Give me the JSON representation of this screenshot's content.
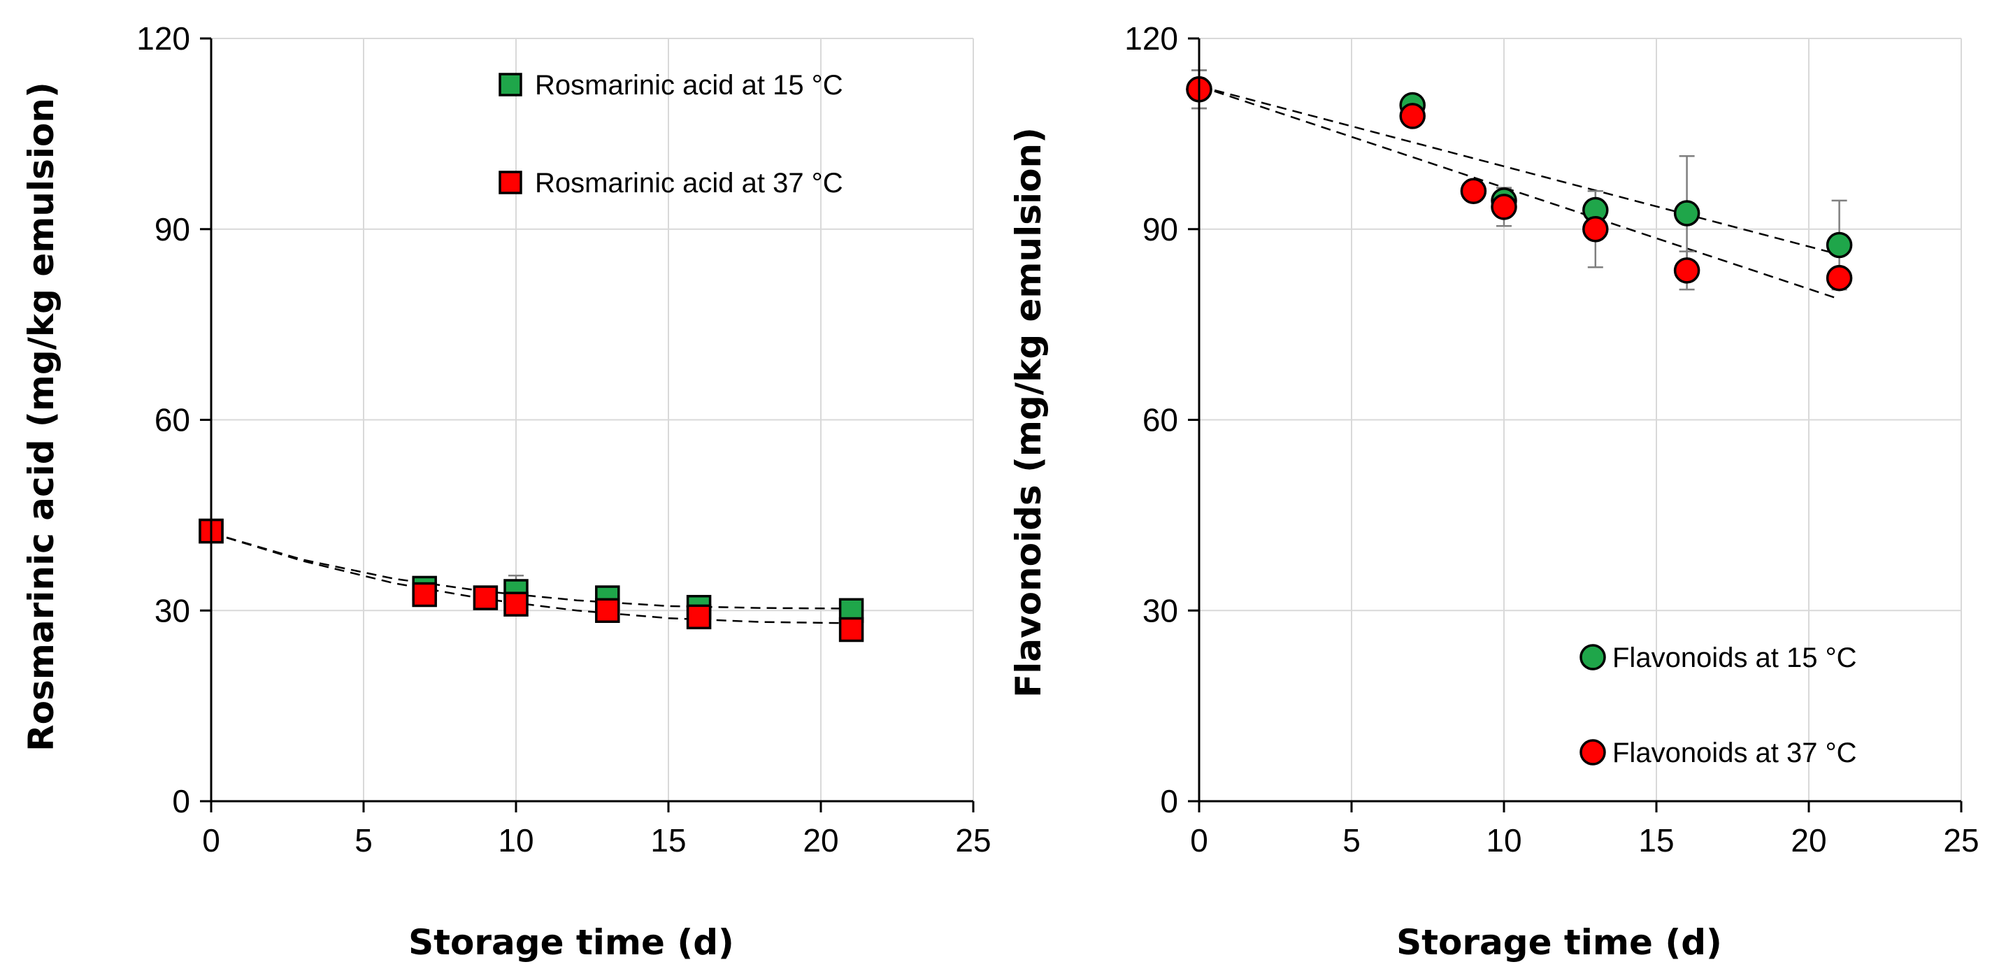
{
  "chart_data": [
    {
      "type": "scatter",
      "xlabel": "Storage time (d)",
      "ylabel": "Rosmarinic acid (mg/kg emulsion)",
      "xlim": [
        0,
        25
      ],
      "ylim": [
        0,
        120
      ],
      "xticks": [
        "0",
        "5",
        "10",
        "15",
        "20",
        "25"
      ],
      "yticks": [
        "0",
        "30",
        "60",
        "90",
        "120"
      ],
      "grid": true,
      "legend_position": "top-right",
      "marker": "square",
      "series": [
        {
          "name": "Rosmarinic acid at 15 °C",
          "color": "#1fa64a",
          "x": [
            0,
            7,
            10,
            13,
            16,
            21
          ],
          "y": [
            42.5,
            33.5,
            33,
            32,
            30.5,
            30
          ],
          "err": [
            0,
            1,
            2.5,
            1,
            1,
            1
          ],
          "trend": [
            [
              0,
              42.2
            ],
            [
              3,
              38.0
            ],
            [
              6,
              35.0
            ],
            [
              9,
              33.0
            ],
            [
              12,
              31.6
            ],
            [
              15,
              30.7
            ],
            [
              18,
              30.4
            ],
            [
              21,
              30.3
            ]
          ]
        },
        {
          "name": "Rosmarinic acid at 37 °C",
          "color": "#ff0000",
          "x": [
            0,
            7,
            9,
            10,
            13,
            16,
            21
          ],
          "y": [
            42.5,
            32.5,
            32,
            31,
            30,
            29,
            27
          ],
          "err": [
            0,
            0.8,
            0.8,
            1,
            0.8,
            0.8,
            0.8
          ],
          "trend": [
            [
              0,
              42.2
            ],
            [
              3,
              37.8
            ],
            [
              6,
              34.3
            ],
            [
              9,
              31.8
            ],
            [
              12,
              30.0
            ],
            [
              15,
              28.8
            ],
            [
              18,
              28.2
            ],
            [
              21,
              28.0
            ]
          ]
        }
      ]
    },
    {
      "type": "scatter",
      "xlabel": "Storage time (d)",
      "ylabel": "Flavonoids  (mg/kg emulsion)",
      "xlim": [
        0,
        25
      ],
      "ylim": [
        0,
        120
      ],
      "xticks": [
        "0",
        "5",
        "10",
        "15",
        "20",
        "25"
      ],
      "yticks": [
        "0",
        "30",
        "60",
        "90",
        "120"
      ],
      "grid": true,
      "legend_position": "bottom-right",
      "marker": "circle",
      "series": [
        {
          "name": "Flavonoids at 15 °C",
          "color": "#1fa64a",
          "x": [
            0,
            7,
            10,
            13,
            16,
            21
          ],
          "y": [
            112,
            109.5,
            94.5,
            93,
            92.5,
            87.5
          ],
          "err": [
            3,
            1,
            2,
            3,
            9,
            7
          ],
          "trend": [
            [
              0,
              112.5
            ],
            [
              21,
              86.0
            ]
          ]
        },
        {
          "name": "Flavonoids at 37 °C",
          "color": "#ff0000",
          "x": [
            0,
            7,
            9,
            10,
            13,
            16,
            21
          ],
          "y": [
            112,
            107.8,
            96,
            93.5,
            90,
            83.5,
            82.3
          ],
          "err": [
            3,
            1,
            1,
            3,
            6,
            3,
            1
          ],
          "trend": [
            [
              0,
              112.5
            ],
            [
              21,
              79.0
            ]
          ]
        }
      ]
    }
  ]
}
